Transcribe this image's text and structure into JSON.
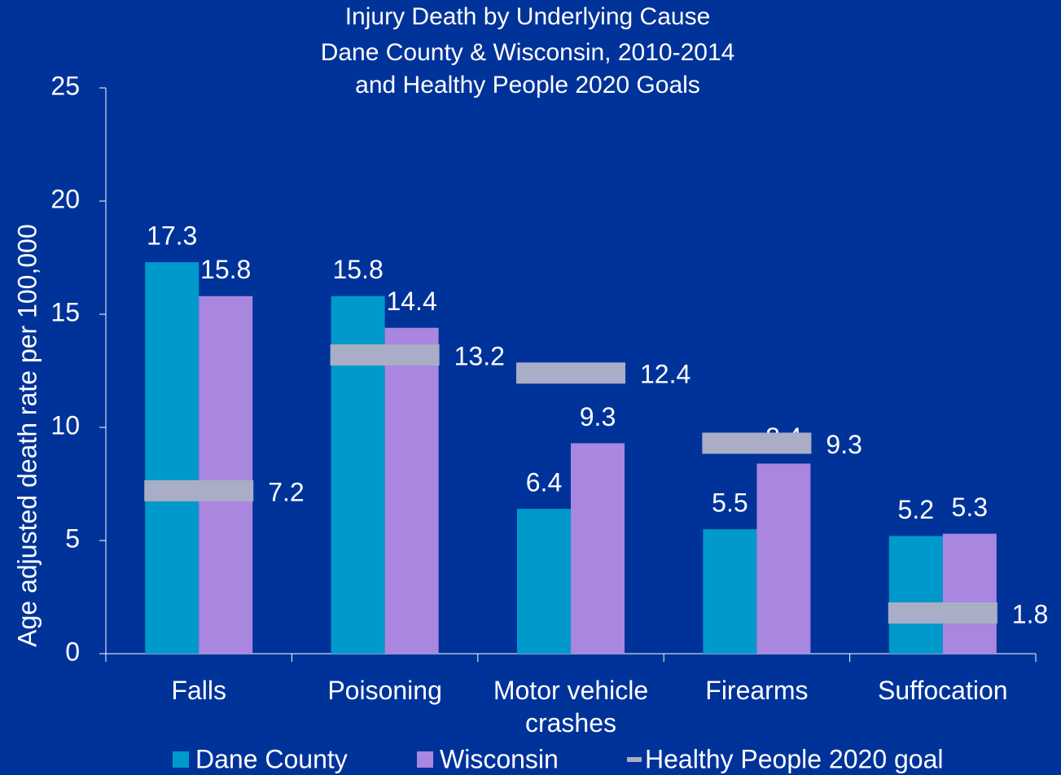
{
  "chart_data": {
    "type": "bar",
    "title": [
      "Injury Death by Underlying Cause",
      "Dane County & Wisconsin, 2010-2014",
      "and Healthy People 2020 Goals"
    ],
    "y_label": "Age adjusted death rate per 100,000",
    "categories": [
      "Falls",
      "Poisoning",
      "Motor vehicle crashes",
      "Firearms",
      "Suffocation"
    ],
    "series": [
      {
        "name": "Dane County",
        "color": "#0099cc",
        "values": [
          17.3,
          15.8,
          6.4,
          5.5,
          5.2
        ]
      },
      {
        "name": "Wisconsin",
        "color": "#a986df",
        "values": [
          15.8,
          14.4,
          9.3,
          8.4,
          5.3
        ]
      },
      {
        "name": "Healthy People 2020 goal",
        "color": "#a9adc6",
        "values": [
          7.2,
          13.2,
          12.4,
          9.3,
          1.8
        ],
        "marker": "dash"
      }
    ],
    "ylim": [
      0,
      25
    ],
    "yticks": [
      0,
      5,
      10,
      15,
      20,
      25
    ],
    "legend": "bottom"
  }
}
